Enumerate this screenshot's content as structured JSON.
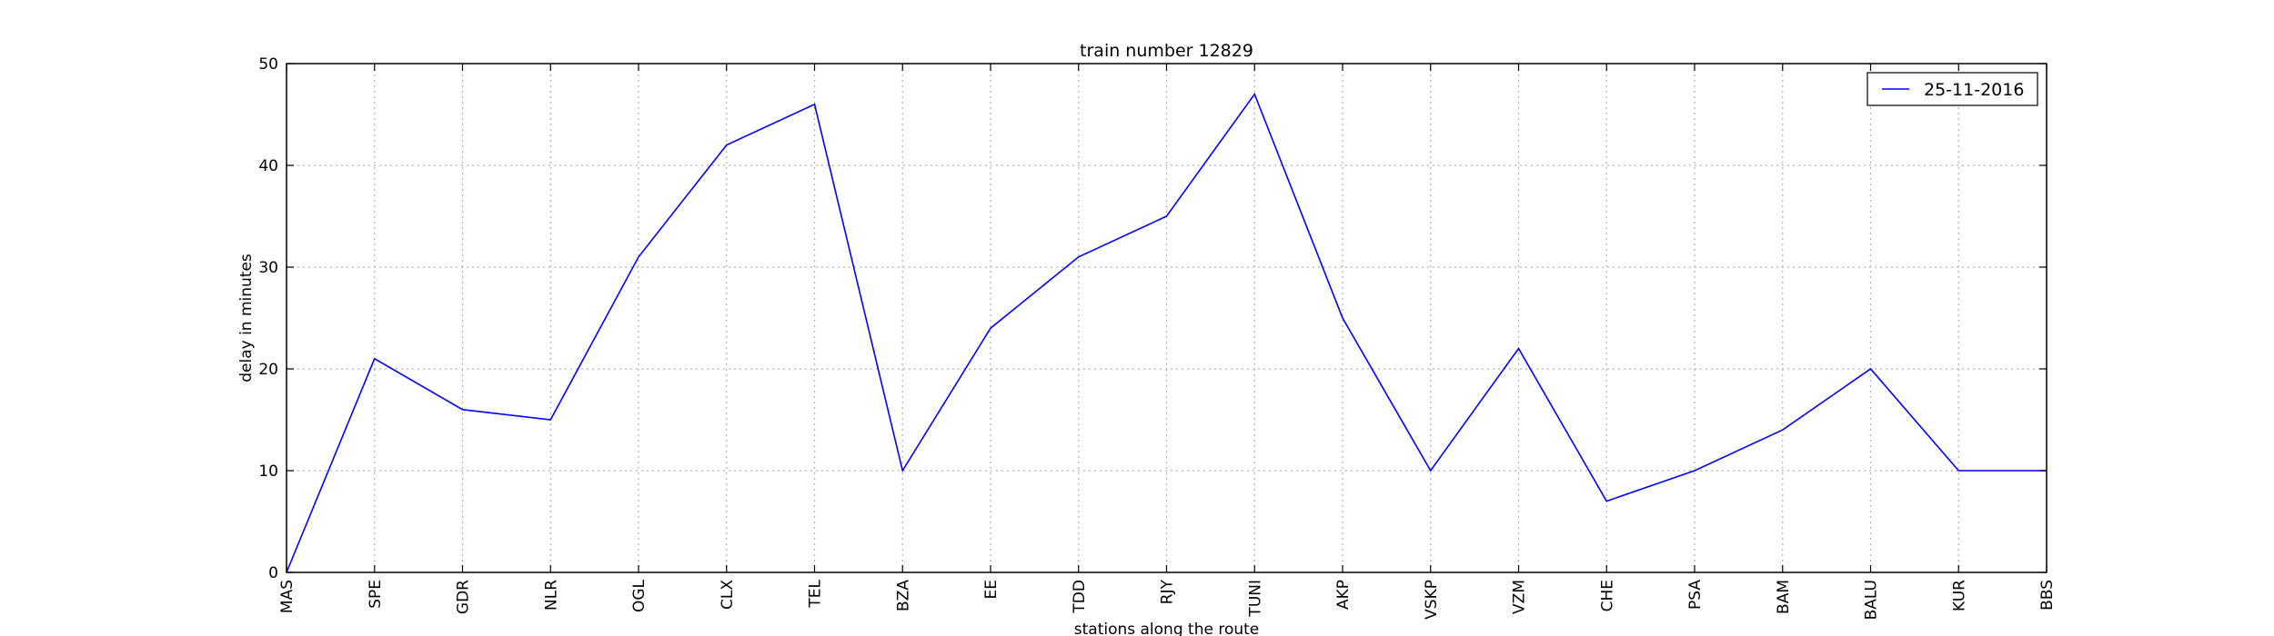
{
  "chart_data": {
    "type": "line",
    "title": "train number 12829",
    "xlabel": "stations along the route",
    "ylabel": "delay in minutes",
    "categories": [
      "MAS",
      "SPE",
      "GDR",
      "NLR",
      "OGL",
      "CLX",
      "TEL",
      "BZA",
      "EE",
      "TDD",
      "RJY",
      "TUNI",
      "AKP",
      "VSKP",
      "VZM",
      "CHE",
      "PSA",
      "BAM",
      "BALU",
      "KUR",
      "BBS"
    ],
    "series": [
      {
        "name": "25-11-2016",
        "values": [
          0,
          21,
          16,
          15,
          31,
          42,
          46,
          10,
          24,
          31,
          35,
          47,
          25,
          10,
          22,
          7,
          10,
          14,
          20,
          10,
          10
        ],
        "color": "#0000ff"
      }
    ],
    "ylim": [
      0,
      50
    ],
    "yticks": [
      0,
      10,
      20,
      30,
      40,
      50
    ],
    "grid": true,
    "legend_position": "top-right"
  }
}
